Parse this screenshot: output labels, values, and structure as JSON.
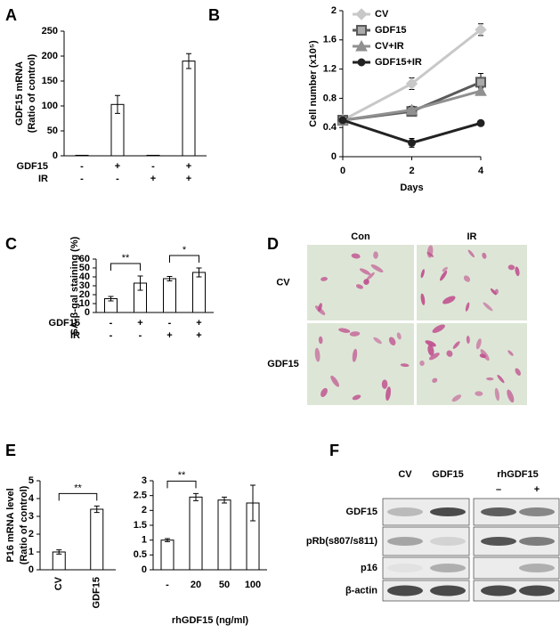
{
  "panel_labels": [
    "A",
    "B",
    "C",
    "D",
    "E",
    "F"
  ],
  "chart_data": [
    {
      "type": "bar",
      "ylabel": [
        "GDF15 mRNA",
        "(Ratio of control)"
      ],
      "conditions": [
        {
          "name": "GDF15",
          "values": [
            "-",
            "+",
            "-",
            "+"
          ]
        },
        {
          "name": "IR",
          "values": [
            "-",
            "-",
            "+",
            "+"
          ]
        }
      ],
      "values": [
        1,
        103,
        1,
        190
      ],
      "errors": [
        0,
        18,
        0,
        15
      ],
      "color": "#ffffff",
      "ylim": [
        0,
        250
      ],
      "yticks": [
        0,
        50,
        100,
        150,
        200,
        250
      ]
    },
    {
      "type": "line",
      "ylabel": "Cell number (x10⁵)",
      "xlabel": "Days",
      "x": [
        0,
        2,
        4
      ],
      "xlim": [
        0,
        4
      ],
      "xticks": [
        0,
        2,
        4
      ],
      "ylim": [
        0,
        2
      ],
      "yticks": [
        0,
        0.4,
        0.8,
        1.2,
        1.6,
        2
      ],
      "series": [
        {
          "name": "CV",
          "color": "#c8c8c8",
          "marker": "diamond",
          "values": [
            0.5,
            1.0,
            1.74
          ],
          "errors": [
            0.02,
            0.08,
            0.08
          ]
        },
        {
          "name": "GDF15",
          "color": "#5a5a5a",
          "marker": "square",
          "values": [
            0.5,
            0.62,
            1.02
          ],
          "errors": [
            0.02,
            0.06,
            0.12
          ]
        },
        {
          "name": "CV+IR",
          "color": "#909090",
          "marker": "triangle",
          "values": [
            0.5,
            0.64,
            0.9
          ],
          "errors": [
            0.02,
            0.05,
            0.04
          ]
        },
        {
          "name": "GDF15+IR",
          "color": "#222222",
          "marker": "circle",
          "values": [
            0.5,
            0.19,
            0.46
          ],
          "errors": [
            0.02,
            0.06,
            0.03
          ]
        }
      ]
    },
    {
      "type": "bar",
      "ylabel": "SA-β-gal staining (%)",
      "conditions": [
        {
          "name": "GDF15",
          "values": [
            "-",
            "+",
            "-",
            "+"
          ]
        },
        {
          "name": "IR",
          "values": [
            "-",
            "-",
            "+",
            "+"
          ]
        }
      ],
      "values": [
        15.5,
        33,
        38,
        45
      ],
      "errors": [
        2.5,
        8,
        2.5,
        5
      ],
      "color": "#ffffff",
      "ylim": [
        0,
        60
      ],
      "yticks": [
        0,
        10,
        20,
        30,
        40,
        50,
        60
      ],
      "annotations": [
        "**",
        "*"
      ]
    },
    {
      "type": "bar",
      "ylabel": [
        "P16 mRNA level",
        "(Ratio of control)"
      ],
      "categories": [
        "CV",
        "GDF15"
      ],
      "values": [
        1,
        3.4
      ],
      "errors": [
        0.12,
        0.18
      ],
      "color": "#ffffff",
      "ylim": [
        0,
        5
      ],
      "yticks": [
        0,
        1,
        2,
        3,
        4,
        5
      ],
      "annotations": [
        "**"
      ]
    },
    {
      "type": "bar",
      "xlabel": "rhGDF15 (ng/ml)",
      "categories": [
        "-",
        "20",
        "50",
        "100"
      ],
      "values": [
        1,
        2.45,
        2.35,
        2.25
      ],
      "errors": [
        0.05,
        0.12,
        0.1,
        0.6
      ],
      "color": "#ffffff",
      "ylim": [
        0,
        3
      ],
      "yticks": [
        0,
        0.5,
        1,
        1.5,
        2,
        2.5,
        3
      ],
      "annotations": [
        "**"
      ]
    }
  ],
  "micrographs": {
    "columns": [
      "Con",
      "IR"
    ],
    "rows": [
      "CV",
      "GDF15"
    ]
  },
  "western_blot": {
    "columns": [
      "CV",
      "GDF15"
    ],
    "treatment": "rhGDF15",
    "treatment_levels": [
      "–",
      "+"
    ],
    "rows": [
      "GDF15",
      "pRb(s807/s811)",
      "p16",
      "β-actin"
    ]
  }
}
